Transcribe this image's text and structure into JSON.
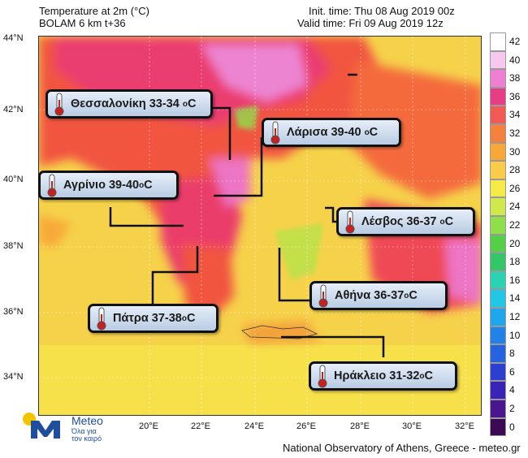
{
  "header": {
    "title_line1": "Temperature at 2m (°C)",
    "title_line2": "BOLAM 6 km t+36",
    "init_time": "Init. time: Thu 08 Aug 2019 00z",
    "valid_time": "Valid time: Fri 09 Aug 2019 12z"
  },
  "axes": {
    "latitudes": [
      "44°N",
      "42°N",
      "40°N",
      "38°N",
      "36°N",
      "34°N"
    ],
    "longitudes": [
      "20°E",
      "22°E",
      "24°E",
      "26°E",
      "28°E",
      "30°E",
      "32°E"
    ]
  },
  "colorbar": {
    "values": [
      "42",
      "40",
      "38",
      "36",
      "34",
      "32",
      "30",
      "28",
      "26",
      "24",
      "22",
      "20",
      "18",
      "16",
      "14",
      "12",
      "10",
      "8",
      "6",
      "4",
      "2",
      "0"
    ],
    "colors": [
      "#ffffff",
      "#f7c8ef",
      "#ef7fd2",
      "#e83c86",
      "#f25a54",
      "#f4813d",
      "#f8a838",
      "#f9cd4a",
      "#f6ea49",
      "#cfe84c",
      "#8fdf4a",
      "#55cf48",
      "#34c76a",
      "#2ad3b4",
      "#22c7e6",
      "#1fa6ec",
      "#2182e8",
      "#2663df",
      "#2c3fd0",
      "#3a24b8",
      "#4a1690",
      "#3a0a55"
    ]
  },
  "callouts": {
    "thessaloniki": {
      "name": "Θεσσαλονίκη 33-34",
      "unit": "C",
      "deg": "o"
    },
    "larisa": {
      "name": "Λάρισα 39-40",
      "unit": "C",
      "deg": "o"
    },
    "agrinio": {
      "name": "Αγρίνιο 39-40",
      "unit": "C",
      "deg": "o"
    },
    "lesvos": {
      "name": "Λέσβος 36-37",
      "unit": "C",
      "deg": "o"
    },
    "athina": {
      "name": "Αθήνα 36-37",
      "unit": "C",
      "deg": "o"
    },
    "patra": {
      "name": "Πάτρα 37-38",
      "unit": "C",
      "deg": "o"
    },
    "irakleio": {
      "name": "Ηράκλειο 31-32",
      "unit": "C",
      "deg": "o"
    }
  },
  "logo": {
    "brand": "Meteo",
    "tagline_line1": "Όλα για",
    "tagline_line2": "τον καιρό"
  },
  "footer": {
    "credit": "National Observatory of Athens, Greece - meteo.gr"
  }
}
